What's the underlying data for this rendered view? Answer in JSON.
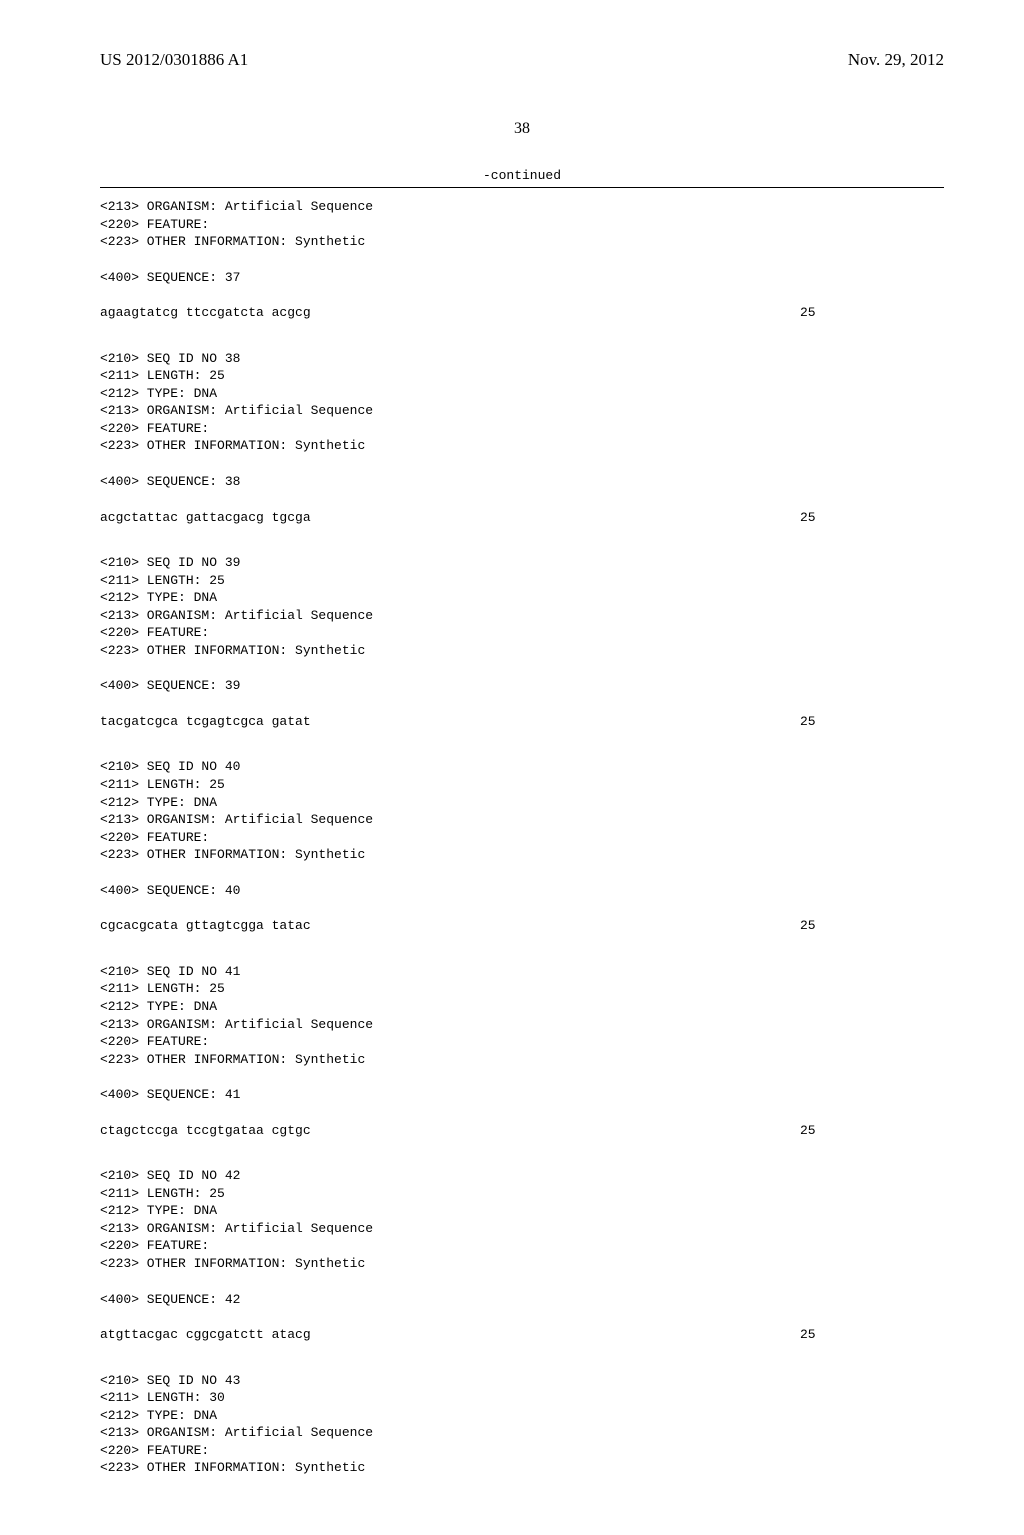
{
  "header": {
    "left": "US 2012/0301886 A1",
    "right": "Nov. 29, 2012"
  },
  "page_number": "38",
  "continued_label": "-continued",
  "blocks": [
    {
      "lines": [
        "<213> ORGANISM: Artificial Sequence",
        "<220> FEATURE:",
        "<223> OTHER INFORMATION: Synthetic"
      ]
    },
    {
      "lines": [
        "<400> SEQUENCE: 37"
      ]
    },
    {
      "seq": "agaagtatcg ttccgatcta acgcg",
      "num": "25"
    },
    {
      "lines": [
        "<210> SEQ ID NO 38",
        "<211> LENGTH: 25",
        "<212> TYPE: DNA",
        "<213> ORGANISM: Artificial Sequence",
        "<220> FEATURE:",
        "<223> OTHER INFORMATION: Synthetic"
      ]
    },
    {
      "lines": [
        "<400> SEQUENCE: 38"
      ]
    },
    {
      "seq": "acgctattac gattacgacg tgcga",
      "num": "25"
    },
    {
      "lines": [
        "<210> SEQ ID NO 39",
        "<211> LENGTH: 25",
        "<212> TYPE: DNA",
        "<213> ORGANISM: Artificial Sequence",
        "<220> FEATURE:",
        "<223> OTHER INFORMATION: Synthetic"
      ]
    },
    {
      "lines": [
        "<400> SEQUENCE: 39"
      ]
    },
    {
      "seq": "tacgatcgca tcgagtcgca gatat",
      "num": "25"
    },
    {
      "lines": [
        "<210> SEQ ID NO 40",
        "<211> LENGTH: 25",
        "<212> TYPE: DNA",
        "<213> ORGANISM: Artificial Sequence",
        "<220> FEATURE:",
        "<223> OTHER INFORMATION: Synthetic"
      ]
    },
    {
      "lines": [
        "<400> SEQUENCE: 40"
      ]
    },
    {
      "seq": "cgcacgcata gttagtcgga tatac",
      "num": "25"
    },
    {
      "lines": [
        "<210> SEQ ID NO 41",
        "<211> LENGTH: 25",
        "<212> TYPE: DNA",
        "<213> ORGANISM: Artificial Sequence",
        "<220> FEATURE:",
        "<223> OTHER INFORMATION: Synthetic"
      ]
    },
    {
      "lines": [
        "<400> SEQUENCE: 41"
      ]
    },
    {
      "seq": "ctagctccga tccgtgataa cgtgc",
      "num": "25"
    },
    {
      "lines": [
        "<210> SEQ ID NO 42",
        "<211> LENGTH: 25",
        "<212> TYPE: DNA",
        "<213> ORGANISM: Artificial Sequence",
        "<220> FEATURE:",
        "<223> OTHER INFORMATION: Synthetic"
      ]
    },
    {
      "lines": [
        "<400> SEQUENCE: 42"
      ]
    },
    {
      "seq": "atgttacgac cggcgatctt atacg",
      "num": "25"
    },
    {
      "lines": [
        "<210> SEQ ID NO 43",
        "<211> LENGTH: 30",
        "<212> TYPE: DNA",
        "<213> ORGANISM: Artificial Sequence",
        "<220> FEATURE:",
        "<223> OTHER INFORMATION: Synthetic"
      ]
    }
  ]
}
